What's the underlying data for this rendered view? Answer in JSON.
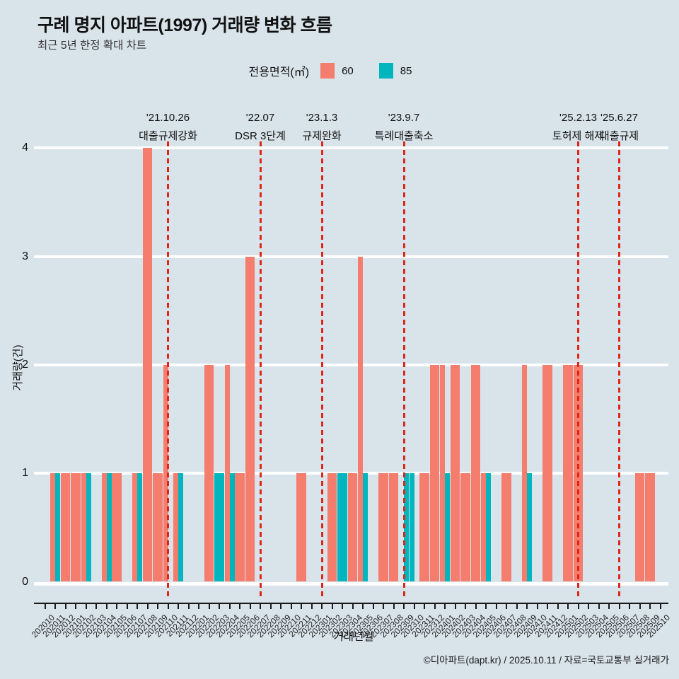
{
  "header": {
    "title": "구례 명지 아파트(1997) 거래량 변화 흐름",
    "subtitle": "최근 5년 한정 확대 차트"
  },
  "legend": {
    "label": "전용면적(㎡)",
    "items": [
      {
        "name": "60",
        "color": "#f57d6e"
      },
      {
        "name": "85",
        "color": "#00b6be"
      }
    ]
  },
  "chart_data": {
    "type": "bar",
    "title": "구례 명지 아파트(1997) 거래량 변화 흐름",
    "subtitle": "최근 5년 한정 확대 차트",
    "xlabel": "거래년월",
    "ylabel": "거래량(건)",
    "ylim": [
      0,
      4
    ],
    "yticks": [
      0,
      1,
      2,
      3,
      4
    ],
    "grid": true,
    "gridcolor": "#ffffff",
    "background": "#d8e3ea",
    "legend_position": "top-center",
    "bar_colors": {
      "60": "#f57d6e",
      "85": "#00b6be"
    },
    "event_line_color": "#e02619",
    "categories": [
      "202010",
      "202011",
      "202012",
      "202101",
      "202102",
      "202103",
      "202104",
      "202105",
      "202106",
      "202107",
      "202108",
      "202109",
      "202110",
      "202111",
      "202112",
      "202201",
      "202202",
      "202203",
      "202204",
      "202205",
      "202206",
      "202207",
      "202208",
      "202209",
      "202210",
      "202211",
      "202212",
      "202301",
      "202302",
      "202303",
      "202304",
      "202305",
      "202306",
      "202307",
      "202308",
      "202309",
      "202310",
      "202311",
      "202312",
      "202401",
      "202402",
      "202403",
      "202404",
      "202405",
      "202406",
      "202407",
      "202408",
      "202409",
      "202410",
      "202411",
      "202412",
      "202501",
      "202502",
      "202503",
      "202504",
      "202505",
      "202506",
      "202507",
      "202508",
      "202509",
      "202510"
    ],
    "series": [
      {
        "name": "60",
        "color": "#f57d6e",
        "values": [
          0,
          1,
          1,
          1,
          1,
          0,
          1,
          1,
          0,
          1,
          4,
          1,
          2,
          1,
          0,
          0,
          2,
          0,
          2,
          1,
          3,
          0,
          0,
          0,
          0,
          1,
          0,
          0,
          1,
          0,
          1,
          3,
          0,
          1,
          1,
          0,
          0,
          1,
          2,
          2,
          2,
          1,
          2,
          1,
          0,
          1,
          0,
          2,
          0,
          2,
          0,
          2,
          2,
          0,
          0,
          0,
          0,
          0,
          1,
          1,
          0
        ],
        "widths": [
          "F",
          "L",
          "F",
          "F",
          "L",
          "F",
          "L",
          "F",
          "F",
          "L",
          "F",
          "F",
          "L",
          "L",
          "F",
          "F",
          "F",
          "F",
          "L",
          "F",
          "F",
          "F",
          "F",
          "F",
          "F",
          "F",
          "F",
          "F",
          "F",
          "F",
          "F",
          "L",
          "F",
          "F",
          "F",
          "F",
          "F",
          "F",
          "F",
          "L",
          "F",
          "F",
          "F",
          "L",
          "F",
          "F",
          "F",
          "L",
          "F",
          "F",
          "F",
          "F",
          "F",
          "F",
          "F",
          "F",
          "F",
          "F",
          "F",
          "F",
          "F"
        ]
      },
      {
        "name": "85",
        "color": "#00b6be",
        "values": [
          0,
          1,
          0,
          0,
          1,
          0,
          1,
          0,
          0,
          1,
          0,
          0,
          0,
          1,
          0,
          0,
          0,
          1,
          1,
          0,
          0,
          0,
          0,
          0,
          0,
          0,
          0,
          0,
          0,
          1,
          0,
          1,
          0,
          0,
          0,
          1,
          1,
          0,
          0,
          1,
          0,
          0,
          0,
          1,
          0,
          0,
          0,
          1,
          0,
          0,
          0,
          0,
          0,
          0,
          0,
          0,
          0,
          0,
          0,
          0,
          0
        ],
        "widths": [
          "F",
          "R",
          "F",
          "F",
          "R",
          "F",
          "R",
          "F",
          "F",
          "R",
          "F",
          "F",
          "F",
          "R",
          "F",
          "F",
          "F",
          "F",
          "R",
          "F",
          "F",
          "F",
          "F",
          "F",
          "F",
          "F",
          "F",
          "F",
          "F",
          "F",
          "F",
          "R",
          "F",
          "F",
          "F",
          "R",
          "L",
          "F",
          "F",
          "R",
          "F",
          "F",
          "F",
          "R",
          "F",
          "F",
          "F",
          "R",
          "F",
          "F",
          "F",
          "F",
          "F",
          "F",
          "F",
          "F",
          "F",
          "F",
          "F",
          "F",
          "F"
        ]
      }
    ],
    "annotations": [
      {
        "date": "'21.10.26",
        "label": "대출규제강화",
        "month": "202110",
        "month_index": 12
      },
      {
        "date": "'22.07",
        "label": "DSR 3단계",
        "month": "202207",
        "month_index": 21
      },
      {
        "date": "'23.1.3",
        "label": "규제완화",
        "month": "202301",
        "month_index": 27
      },
      {
        "date": "'23.9.7",
        "label": "특례대출축소",
        "month": "202309",
        "month_index": 35
      },
      {
        "date": "'25.2.13",
        "label": "토허제 해제",
        "month": "202502",
        "month_index": 52
      },
      {
        "date": "'25.6.27",
        "label": "대출규제",
        "month": "202506",
        "month_index": 56
      }
    ]
  },
  "footer": {
    "credit": "©디아파트(dapt.kr) / 2025.10.11 / 자료=국토교통부 실거래가"
  }
}
